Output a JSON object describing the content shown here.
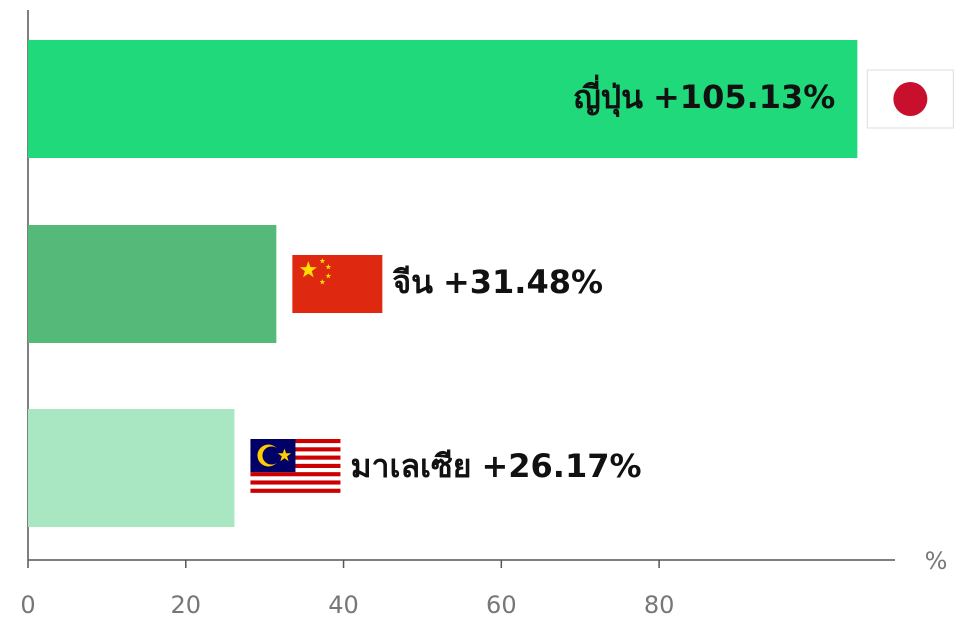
{
  "chart_data": {
    "type": "bar",
    "orientation": "horizontal",
    "categories": [
      "ญี่ปุ่น",
      "จีน",
      "มาเลเซีย"
    ],
    "values": [
      105.13,
      31.48,
      26.17
    ],
    "value_labels": [
      "+105.13%",
      "+31.48%",
      "+26.17%"
    ],
    "colors": [
      "#1fd97a",
      "#55b97a",
      "#a9e7c3"
    ],
    "xlim": [
      0,
      108
    ],
    "xticks": [
      0,
      20,
      40,
      60,
      80
    ],
    "xlabel": "%"
  }
}
